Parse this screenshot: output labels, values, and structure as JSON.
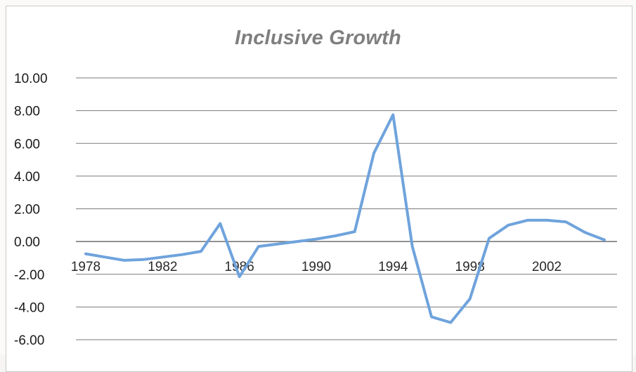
{
  "chart_data": {
    "type": "line",
    "title": "Inclusive Growth",
    "xlabel": "",
    "ylabel": "",
    "ylim": [
      -6,
      10
    ],
    "xlim": [
      1978,
      2005
    ],
    "y_ticks": [
      "10.00",
      "8.00",
      "6.00",
      "4.00",
      "2.00",
      "0.00",
      "-2.00",
      "-4.00",
      "-6.00"
    ],
    "x_ticks": [
      "1978",
      "1982",
      "1986",
      "1990",
      "1994",
      "1998",
      "2002"
    ],
    "grid": "horizontal",
    "legend": "none",
    "line_color": "#6fa3dc",
    "series": [
      {
        "x": [
          1978,
          1979,
          1980,
          1981,
          1982,
          1983,
          1984,
          1985,
          1986,
          1987,
          1988,
          1989,
          1990,
          1991,
          1992,
          1993,
          1994,
          1995,
          1996,
          1997,
          1998,
          1999,
          2000,
          2001,
          2002,
          2003,
          2004,
          2005
        ],
        "values": [
          -0.75,
          -0.95,
          -1.15,
          -1.1,
          -0.95,
          -0.8,
          -0.6,
          1.1,
          -2.15,
          -0.3,
          -0.15,
          0.0,
          0.15,
          0.35,
          0.6,
          5.4,
          7.75,
          -0.3,
          -4.6,
          -4.95,
          -3.5,
          0.2,
          1.0,
          1.3,
          1.3,
          1.2,
          0.55,
          0.1
        ]
      }
    ]
  }
}
